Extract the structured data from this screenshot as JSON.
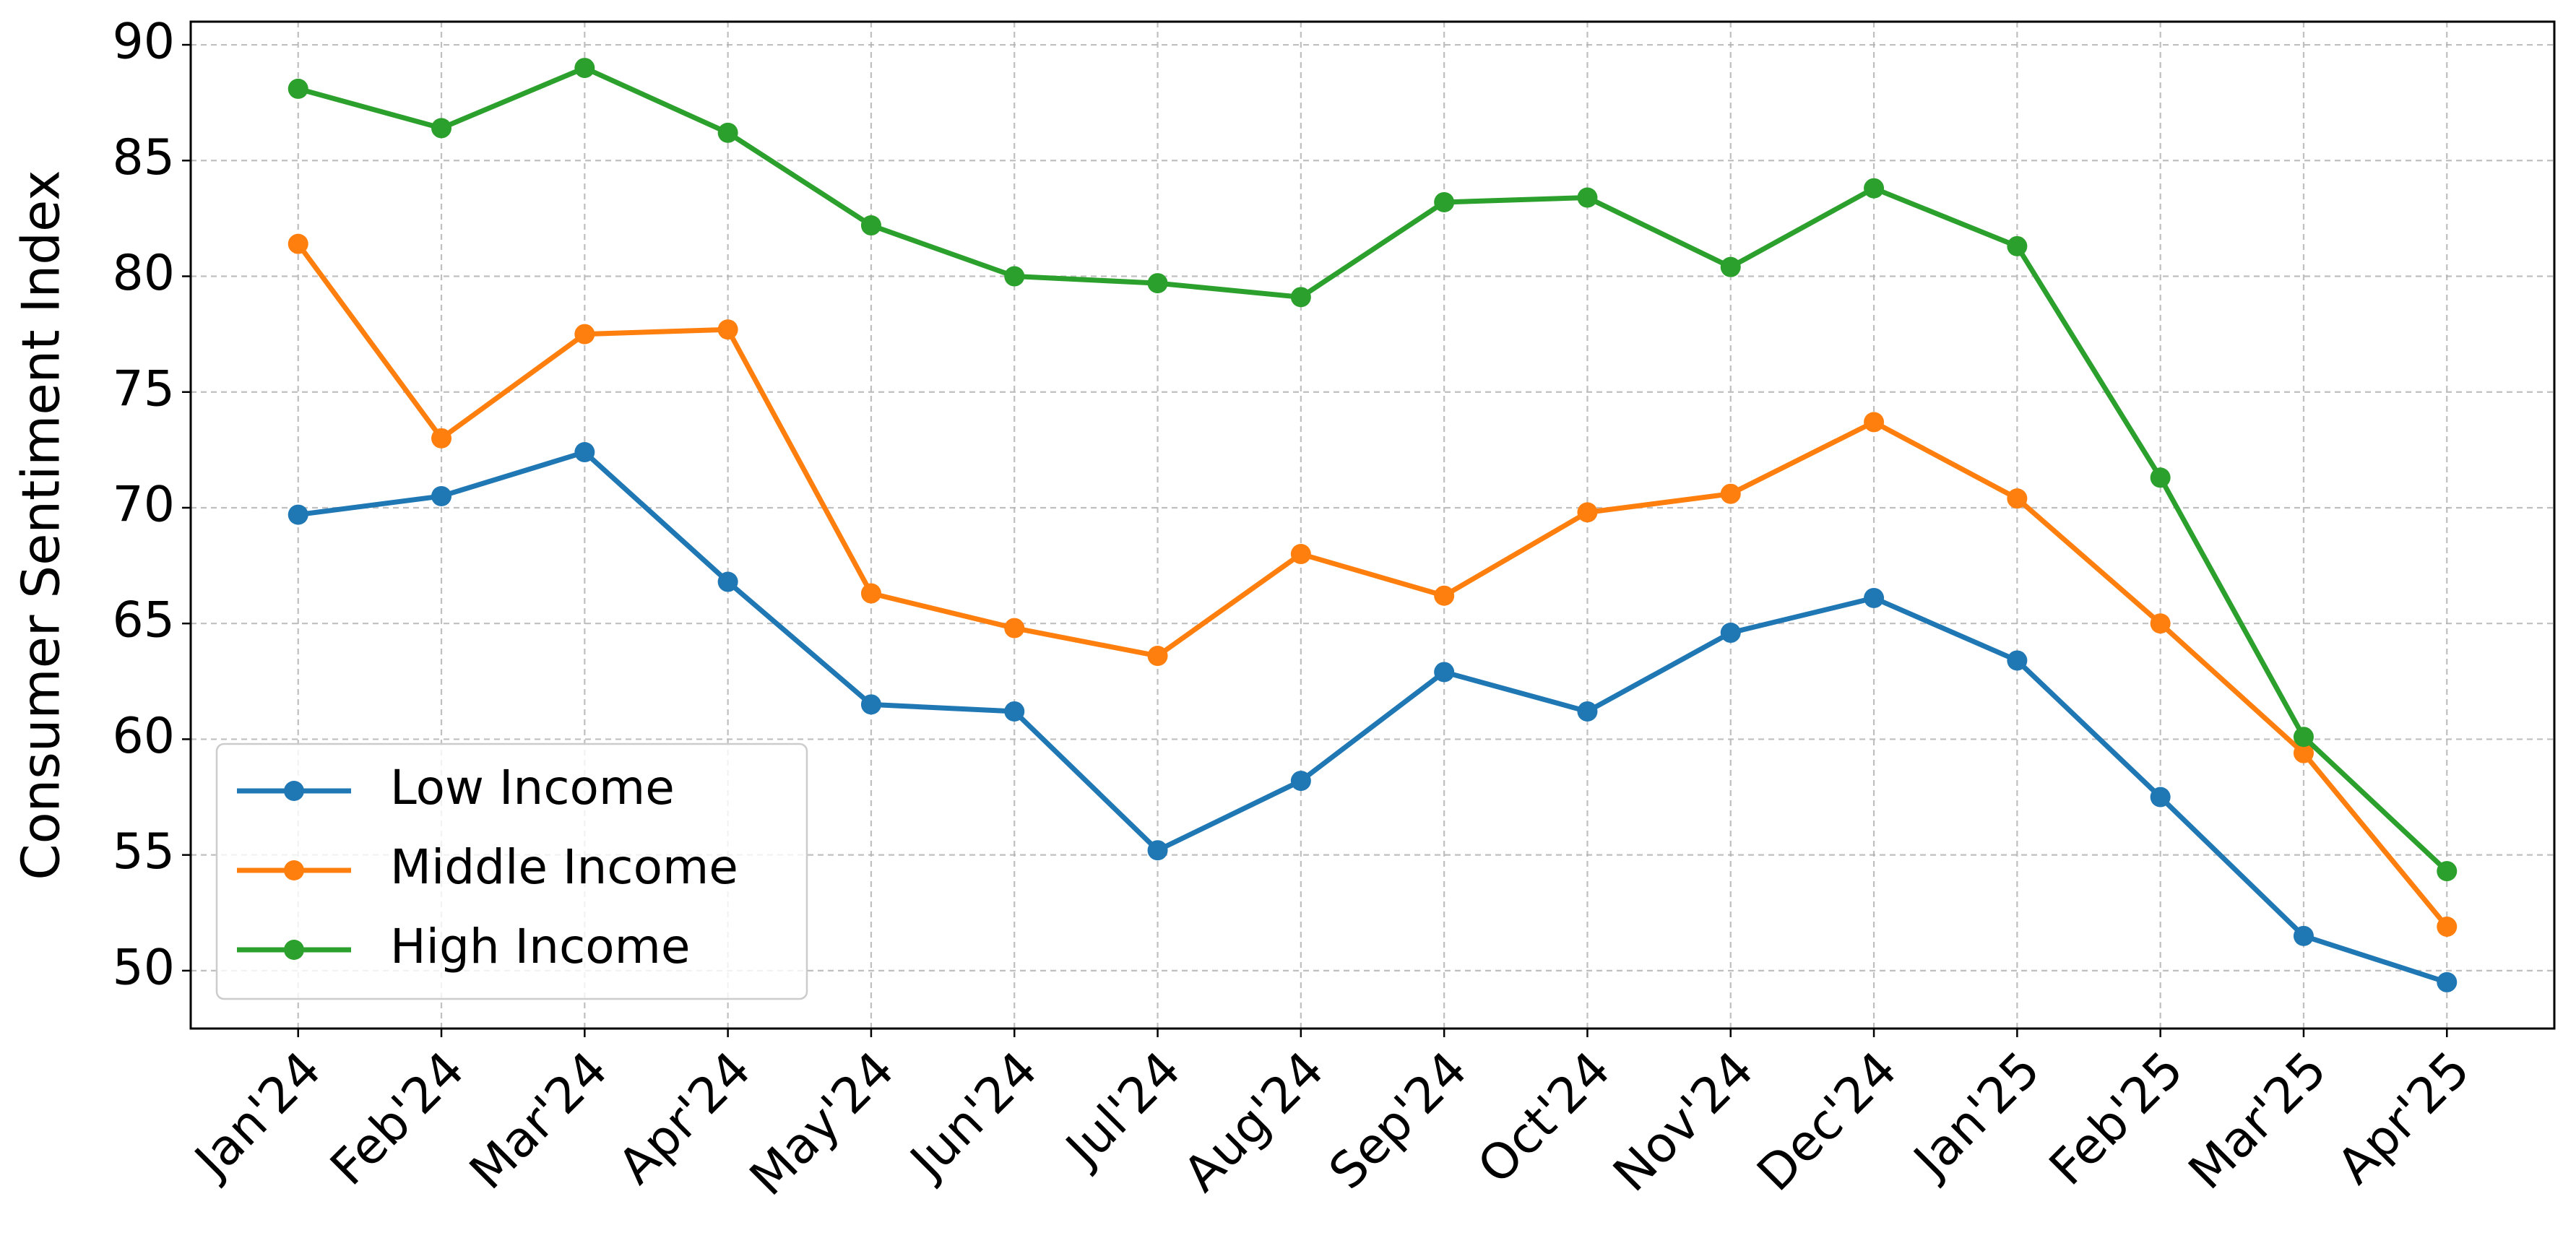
{
  "chart_data": {
    "type": "line",
    "ylabel": "Consumer Sentiment Index",
    "categories": [
      "Jan'24",
      "Feb'24",
      "Mar'24",
      "Apr'24",
      "May'24",
      "Jun'24",
      "Jul'24",
      "Aug'24",
      "Sep'24",
      "Oct'24",
      "Nov'24",
      "Dec'24",
      "Jan'25",
      "Feb'25",
      "Mar'25",
      "Apr'25"
    ],
    "series": [
      {
        "name": "Low Income",
        "color": "#1f77b4",
        "values": [
          69.7,
          70.5,
          72.4,
          66.8,
          61.5,
          61.2,
          55.2,
          58.2,
          62.9,
          61.2,
          64.6,
          66.1,
          63.4,
          57.5,
          51.5,
          49.5
        ]
      },
      {
        "name": "Middle Income",
        "color": "#ff7f0e",
        "values": [
          81.4,
          73.0,
          77.5,
          77.7,
          66.3,
          64.8,
          63.6,
          68.0,
          66.2,
          69.8,
          70.6,
          73.7,
          70.4,
          65.0,
          59.4,
          51.9
        ]
      },
      {
        "name": "High Income",
        "color": "#2ca02c",
        "values": [
          88.1,
          86.4,
          89.0,
          86.2,
          82.2,
          80.0,
          79.7,
          79.1,
          83.2,
          83.4,
          80.4,
          83.8,
          81.3,
          71.3,
          60.1,
          54.3
        ]
      }
    ],
    "ylim": [
      47.5,
      91
    ],
    "yticks": [
      50,
      55,
      60,
      65,
      70,
      75,
      80,
      85,
      90
    ],
    "grid": true,
    "legend": "lower left"
  }
}
